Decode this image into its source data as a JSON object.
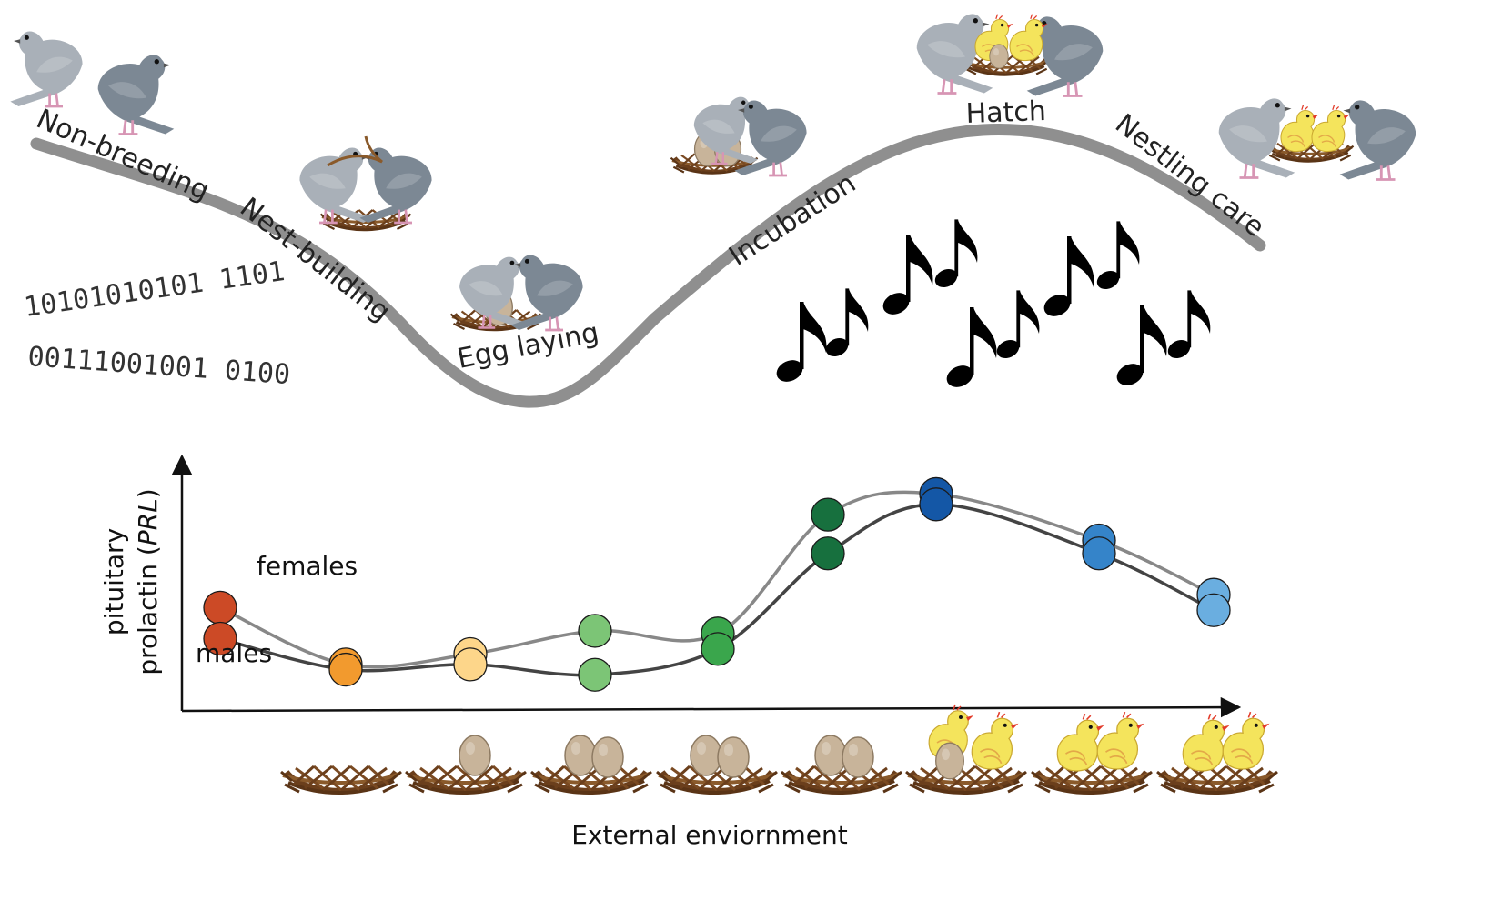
{
  "stages": [
    "Non-breeding",
    "Nest-building",
    "Egg laying",
    "Incubation",
    "Hatch",
    "Nestling care"
  ],
  "binary": {
    "line1": "10101010101 1101",
    "line2": "00111001001 0100"
  },
  "chart": {
    "y_axis_label_line1": "pituitary",
    "y_axis_label_line2": "prolactin (",
    "y_axis_label_italic": "PRL",
    "y_axis_label_close": ")",
    "x_axis_label": "External enviornment"
  },
  "series_labels": {
    "females": "females",
    "males": "males"
  },
  "chart_data": {
    "type": "line",
    "x": [
      1,
      2,
      3,
      4,
      5,
      6,
      7,
      8,
      9
    ],
    "series": [
      {
        "name": "females",
        "values": [
          0.4,
          0.18,
          0.22,
          0.31,
          0.3,
          0.76,
          0.84,
          0.66,
          0.45
        ],
        "color": "#888888"
      },
      {
        "name": "males",
        "values": [
          0.28,
          0.16,
          0.18,
          0.14,
          0.24,
          0.61,
          0.8,
          0.61,
          0.39
        ],
        "color": "#444444"
      }
    ],
    "point_colors": [
      "#cc4a26",
      "#f29a2e",
      "#fdd68a",
      "#7cc576",
      "#3aa64c",
      "#17703e",
      "#1457a6",
      "#3584c9",
      "#6aaee0"
    ],
    "nests": [
      {
        "eggs": 0,
        "chicks": 0
      },
      {
        "eggs": 1,
        "chicks": 0
      },
      {
        "eggs": 2,
        "chicks": 0
      },
      {
        "eggs": 2,
        "chicks": 0
      },
      {
        "eggs": 2,
        "chicks": 0
      },
      {
        "eggs": 1,
        "chicks": 2,
        "hatching": true
      },
      {
        "eggs": 0,
        "chicks": 2
      },
      {
        "eggs": 0,
        "chicks": 2
      }
    ]
  },
  "colors": {
    "pigeon_light": "#a9b0b8",
    "pigeon_dark": "#7c8894",
    "nest": "#7a4a22",
    "egg": "#c8b49a",
    "chick": "#f4e45c",
    "curve": "#8f8f8f"
  }
}
